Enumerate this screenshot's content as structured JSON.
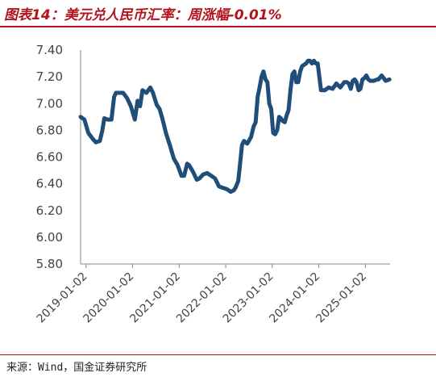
{
  "title": "图表14：美元兑人民币汇率：周涨幅-0.01%",
  "source": "来源：Wind，国金证券研究所",
  "colors": {
    "accent": "#b4121b",
    "series": "#1f4e79",
    "axis": "#888888"
  },
  "chart_data": {
    "type": "line",
    "ylim": [
      5.8,
      7.4
    ],
    "yticks": [
      "5.80",
      "6.00",
      "6.20",
      "6.40",
      "6.60",
      "6.80",
      "7.00",
      "7.20",
      "7.40"
    ],
    "xticks": [
      "2019-01-02",
      "2020-01-02",
      "2021-01-02",
      "2022-01-02",
      "2023-01-02",
      "2024-01-02",
      "2025-01-02"
    ],
    "xlim": [
      "2018-11-20",
      "2025-07-15"
    ],
    "grid": false,
    "x": [
      "2018-11-20",
      "2018-12-20",
      "2019-01-20",
      "2019-02-20",
      "2019-03-20",
      "2019-04-20",
      "2019-05-10",
      "2019-05-25",
      "2019-06-20",
      "2019-07-20",
      "2019-08-10",
      "2019-08-25",
      "2019-09-20",
      "2019-10-20",
      "2019-11-20",
      "2019-12-20",
      "2020-01-20",
      "2020-02-10",
      "2020-03-01",
      "2020-03-20",
      "2020-04-20",
      "2020-05-20",
      "2020-06-10",
      "2020-07-10",
      "2020-08-01",
      "2020-08-25",
      "2020-09-20",
      "2020-10-20",
      "2020-11-20",
      "2020-12-20",
      "2021-01-20",
      "2021-02-10",
      "2021-03-05",
      "2021-03-20",
      "2021-04-20",
      "2021-05-20",
      "2021-06-10",
      "2021-07-10",
      "2021-08-10",
      "2021-09-10",
      "2021-10-10",
      "2021-11-10",
      "2021-12-10",
      "2022-01-10",
      "2022-02-10",
      "2022-03-05",
      "2022-03-20",
      "2022-04-10",
      "2022-04-25",
      "2022-05-10",
      "2022-05-25",
      "2022-06-20",
      "2022-07-20",
      "2022-08-10",
      "2022-08-25",
      "2022-09-10",
      "2022-09-25",
      "2022-10-10",
      "2022-10-25",
      "2022-11-10",
      "2022-11-25",
      "2022-12-10",
      "2022-12-25",
      "2023-01-10",
      "2023-01-25",
      "2023-02-10",
      "2023-02-25",
      "2023-03-10",
      "2023-03-25",
      "2023-04-10",
      "2023-04-25",
      "2023-05-10",
      "2023-05-25",
      "2023-06-10",
      "2023-06-25",
      "2023-07-10",
      "2023-07-25",
      "2023-08-10",
      "2023-08-25",
      "2023-09-10",
      "2023-09-25",
      "2023-10-10",
      "2023-10-25",
      "2023-11-10",
      "2023-11-25",
      "2023-12-10",
      "2023-12-25",
      "2024-01-20",
      "2024-02-20",
      "2024-03-20",
      "2024-04-20",
      "2024-05-20",
      "2024-06-20",
      "2024-07-20",
      "2024-08-10",
      "2024-08-25",
      "2024-09-10",
      "2024-09-25",
      "2024-10-10",
      "2024-10-25",
      "2024-11-10",
      "2024-11-25",
      "2024-12-10",
      "2024-12-25",
      "2025-01-10",
      "2025-01-25",
      "2025-02-10",
      "2025-03-10",
      "2025-04-05",
      "2025-04-15",
      "2025-05-10",
      "2025-06-10",
      "2025-07-10"
    ],
    "series": [
      {
        "values": [
          6.9,
          6.88,
          6.78,
          6.74,
          6.71,
          6.72,
          6.8,
          6.89,
          6.88,
          6.88,
          7.05,
          7.08,
          7.08,
          7.08,
          7.04,
          6.98,
          6.88,
          7.02,
          6.98,
          7.1,
          7.08,
          7.12,
          7.08,
          6.99,
          6.96,
          6.88,
          6.78,
          6.69,
          6.59,
          6.54,
          6.46,
          6.46,
          6.55,
          6.54,
          6.49,
          6.43,
          6.44,
          6.47,
          6.48,
          6.46,
          6.44,
          6.38,
          6.37,
          6.36,
          6.34,
          6.35,
          6.37,
          6.42,
          6.55,
          6.69,
          6.72,
          6.7,
          6.75,
          6.83,
          6.86,
          7.05,
          7.12,
          7.2,
          7.24,
          7.18,
          7.16,
          7.0,
          6.96,
          6.78,
          6.77,
          6.8,
          6.9,
          6.89,
          6.87,
          6.86,
          6.91,
          6.95,
          7.1,
          7.22,
          7.24,
          7.16,
          7.16,
          7.24,
          7.28,
          7.29,
          7.3,
          7.32,
          7.32,
          7.3,
          7.32,
          7.3,
          7.3,
          7.1,
          7.1,
          7.12,
          7.11,
          7.15,
          7.12,
          7.16,
          7.16,
          7.15,
          7.11,
          7.17,
          7.18,
          7.16,
          7.1,
          7.11,
          7.18,
          7.19,
          7.21,
          7.18,
          7.17,
          7.17,
          7.18,
          7.18,
          7.21,
          7.17,
          7.18
        ]
      }
    ]
  }
}
